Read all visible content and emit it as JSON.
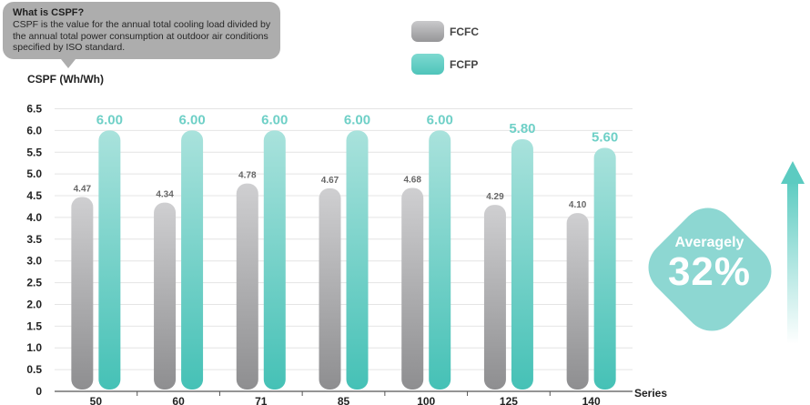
{
  "tooltip": {
    "title": "What is CSPF?",
    "body": "CSPF is the value for the annual total cooling load divided by the annual total power consumption at outdoor air conditions specified by ISO standard."
  },
  "legend": [
    {
      "label": "FCFC",
      "color": "#a9a9ab"
    },
    {
      "label": "FCFP",
      "color": "#5ccbc1"
    }
  ],
  "badge": {
    "line1": "Averagely",
    "line2": "32%"
  },
  "chart_data": {
    "type": "bar",
    "ylabel": "CSPF (Wh/Wh)",
    "xlabel": "Series",
    "categories": [
      "50",
      "60",
      "71",
      "85",
      "100",
      "125",
      "140"
    ],
    "series": [
      {
        "name": "FCFC",
        "values": [
          4.47,
          4.34,
          4.78,
          4.67,
          4.68,
          4.29,
          4.1
        ],
        "labels": [
          "4.47",
          "4.34",
          "4.78",
          "4.67",
          "4.68",
          "4.29",
          "4.10"
        ]
      },
      {
        "name": "FCFP",
        "values": [
          6.0,
          6.0,
          6.0,
          6.0,
          6.0,
          5.8,
          5.6
        ],
        "labels": [
          "6.00",
          "6.00",
          "6.00",
          "6.00",
          "6.00",
          "5.80",
          "5.60"
        ]
      }
    ],
    "ylim": [
      0,
      6.5
    ],
    "yticks": [
      "0",
      "0.5",
      "1.0",
      "1.5",
      "2.0",
      "2.5",
      "3.0",
      "3.5",
      "4.0",
      "4.5",
      "5.0",
      "5.5",
      "6.0",
      "6.5"
    ],
    "grid": true
  }
}
